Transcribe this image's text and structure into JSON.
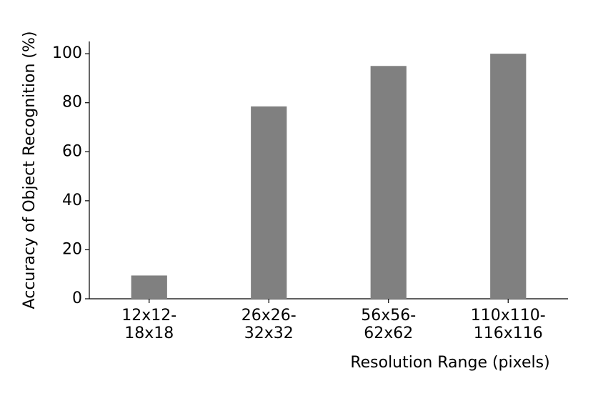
{
  "chart_data": {
    "type": "bar",
    "x_label": "Resolution Range (pixels)",
    "y_label": "Accuracy of Object Recognition (%)",
    "categories": [
      [
        "12x12-",
        "18x18"
      ],
      [
        "26x26-",
        "32x32"
      ],
      [
        "56x56-",
        "62x62"
      ],
      [
        "110x110-",
        "116x116"
      ]
    ],
    "values": [
      9.5,
      78.5,
      95,
      100
    ],
    "color": "#808080",
    "ylim": [
      0,
      105
    ],
    "yticks": [
      0,
      20,
      40,
      60,
      80,
      100
    ],
    "grid": false
  }
}
